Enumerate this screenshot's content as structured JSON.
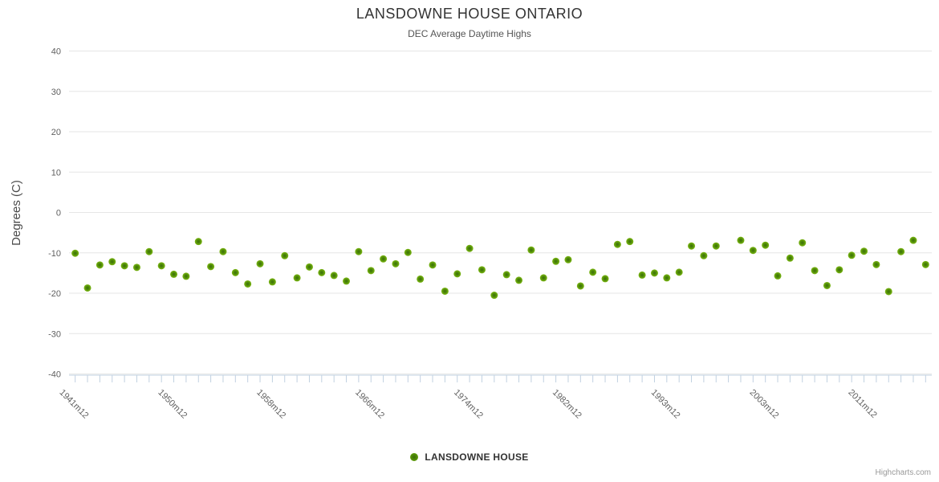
{
  "chart_data": {
    "type": "scatter",
    "title": "LANSDOWNE HOUSE ONTARIO",
    "subtitle": "DEC Average Daytime Highs",
    "ylabel": "Degrees (C)",
    "ylim": [
      -40,
      40
    ],
    "yticks": [
      40,
      30,
      20,
      10,
      0,
      -10,
      -20,
      -30,
      -40
    ],
    "grid": true,
    "legend_position": "bottom",
    "x_label_every": 8,
    "categories": [
      "1941m12",
      "1942m12",
      "1943m12",
      "1944m12",
      "1945m12",
      "1946m12",
      "1948m12",
      "1949m12",
      "1950m12",
      "1951m12",
      "1952m12",
      "1953m12",
      "1954m12",
      "1955m12",
      "1956m12",
      "1957m12",
      "1958m12",
      "1959m12",
      "1960m12",
      "1961m12",
      "1962m12",
      "1963m12",
      "1964m12",
      "1965m12",
      "1966m12",
      "1967m12",
      "1968m12",
      "1969m12",
      "1970m12",
      "1971m12",
      "1972m12",
      "1973m12",
      "1974m12",
      "1975m12",
      "1976m12",
      "1977m12",
      "1978m12",
      "1979m12",
      "1980m12",
      "1981m12",
      "1982m12",
      "1983m12",
      "1985m12",
      "1987m12",
      "1988m12",
      "1990m12",
      "1991m12",
      "1992m12",
      "1993m12",
      "1994m12",
      "1996m12",
      "1997m12",
      "1998m12",
      "2000m12",
      "2001m12",
      "2002m12",
      "2003m12",
      "2004m12",
      "2005m12",
      "2006m12",
      "2007m12",
      "2008m12",
      "2009m12",
      "2010m12",
      "2011m12",
      "2012m12",
      "2013m12",
      "2014m12",
      "2015m12",
      "2016m12"
    ],
    "series": [
      {
        "name": "LANSDOWNE HOUSE",
        "color": "#7DB814",
        "values": [
          -10.1,
          -18.7,
          -13.0,
          -12.2,
          -13.2,
          -13.6,
          -9.7,
          -13.2,
          -15.3,
          -15.8,
          -7.2,
          -13.4,
          -9.7,
          -14.9,
          -17.7,
          -12.7,
          -17.2,
          -10.7,
          -16.2,
          -13.5,
          -14.9,
          -15.6,
          -17.0,
          -9.7,
          -14.4,
          -11.5,
          -12.7,
          -9.9,
          -16.5,
          -13.0,
          -19.5,
          -15.2,
          -8.9,
          -14.2,
          -20.5,
          -15.4,
          -16.8,
          -9.3,
          -16.2,
          -12.1,
          -11.7,
          -18.2,
          -14.8,
          -16.4,
          -7.9,
          -7.2,
          -15.5,
          -15.0,
          -16.2,
          -14.8,
          -8.3,
          -10.7,
          -8.3,
          null,
          -6.9,
          -9.4,
          -8.1,
          -15.7,
          -11.3,
          -7.5,
          -14.4,
          -18.1,
          -14.2,
          -10.6,
          -9.6,
          -12.9,
          -19.6,
          -9.7,
          -6.9,
          -12.9
        ]
      }
    ]
  },
  "credit": {
    "label": "Highcharts.com"
  },
  "colors": {
    "point_outer": "#7DB814",
    "point_mid": "#4E8A08",
    "point_inner": "#3C6E0A",
    "grid_line": "#E6E6E6",
    "axis_line": "#C0D0E0",
    "tick_mark": "#C0D0E0",
    "axis_label": "#606060",
    "y_title": "#4A4A4A",
    "title": "#333333",
    "subtitle": "#555555"
  }
}
